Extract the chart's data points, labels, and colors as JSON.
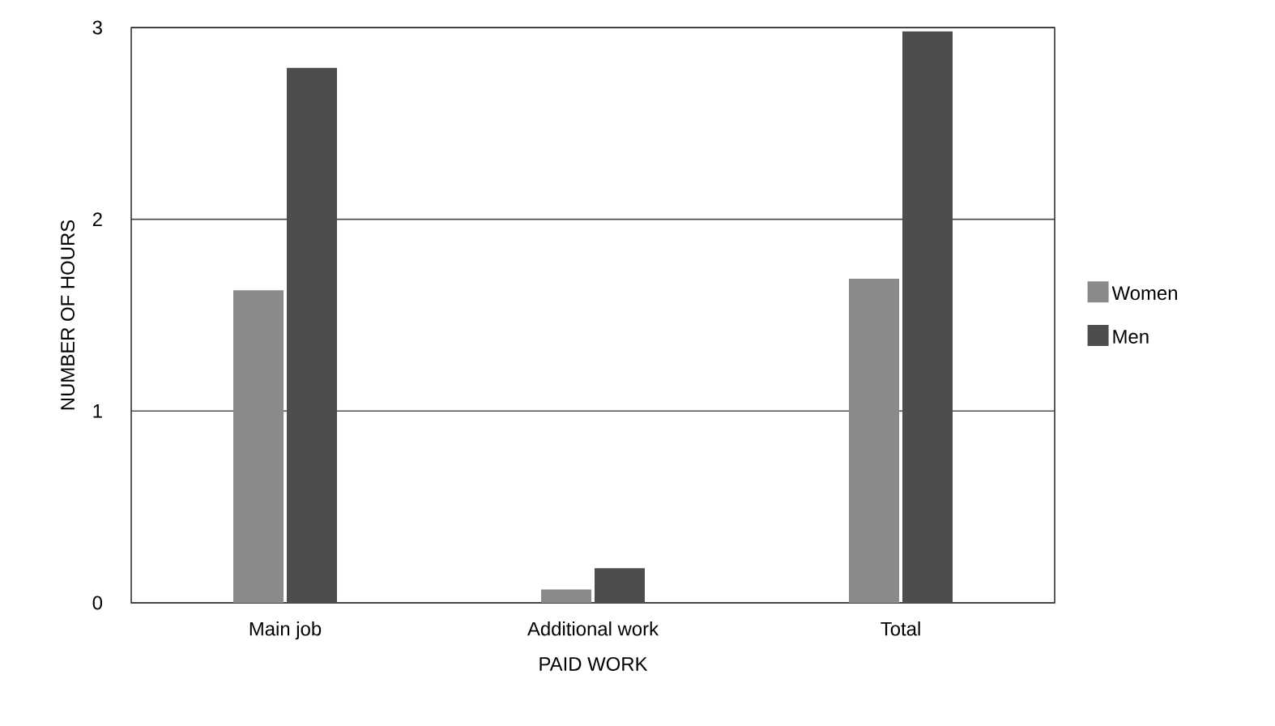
{
  "chart_data": {
    "type": "bar",
    "xlabel": "PAID WORK",
    "ylabel": "NUMBER OF HOURS",
    "categories": [
      "Main job",
      "Additional work",
      "Total"
    ],
    "series": [
      {
        "name": "Women",
        "color": "#8a8a8a",
        "values": [
          1.63,
          0.07,
          1.69
        ]
      },
      {
        "name": "Men",
        "color": "#4d4d4d",
        "values": [
          2.79,
          0.18,
          2.98
        ]
      }
    ],
    "ylim": [
      0,
      3
    ],
    "yticks": [
      0,
      1,
      2,
      3
    ],
    "grid": "y",
    "legend": "right"
  }
}
